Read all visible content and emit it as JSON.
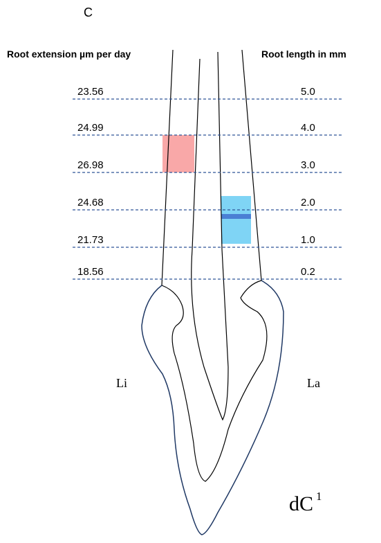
{
  "panel_label": "C",
  "left_header": "Root extension µm per day",
  "right_header": "Root length in mm",
  "rows": [
    {
      "extension": 23.56,
      "length": "5.0"
    },
    {
      "extension": 24.99,
      "length": "4.0"
    },
    {
      "extension": 26.98,
      "length": "3.0"
    },
    {
      "extension": 24.68,
      "length": "2.0"
    },
    {
      "extension": 21.73,
      "length": "1.0"
    },
    {
      "extension": 18.56,
      "length": "0.2"
    }
  ],
  "side_left": "Li",
  "side_right": "La",
  "tooth": {
    "name": "dC",
    "superscript": "1"
  }
}
